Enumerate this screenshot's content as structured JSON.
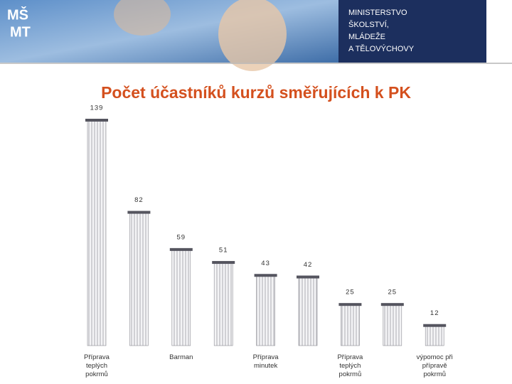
{
  "header": {
    "logo": [
      "MŠ",
      "MT"
    ],
    "ministry": [
      "MINISTERSTVO",
      "ŠKOLSTVÍ,",
      "MLÁDEŽE",
      "A TĚLOVÝCHOVY"
    ]
  },
  "chart_data": {
    "type": "bar",
    "title": "Počet účastníků kurzů směřujících k PK",
    "categories": [
      "Příprava teplých pokrmů",
      null,
      "Barman",
      null,
      "Příprava minutek",
      null,
      "Příprava teplých pokrmů",
      null,
      "výpomoc při přípravě pokrmů"
    ],
    "values": [
      139,
      82,
      59,
      51,
      43,
      42,
      25,
      25,
      12
    ],
    "color": "#f2f2f4"
  }
}
